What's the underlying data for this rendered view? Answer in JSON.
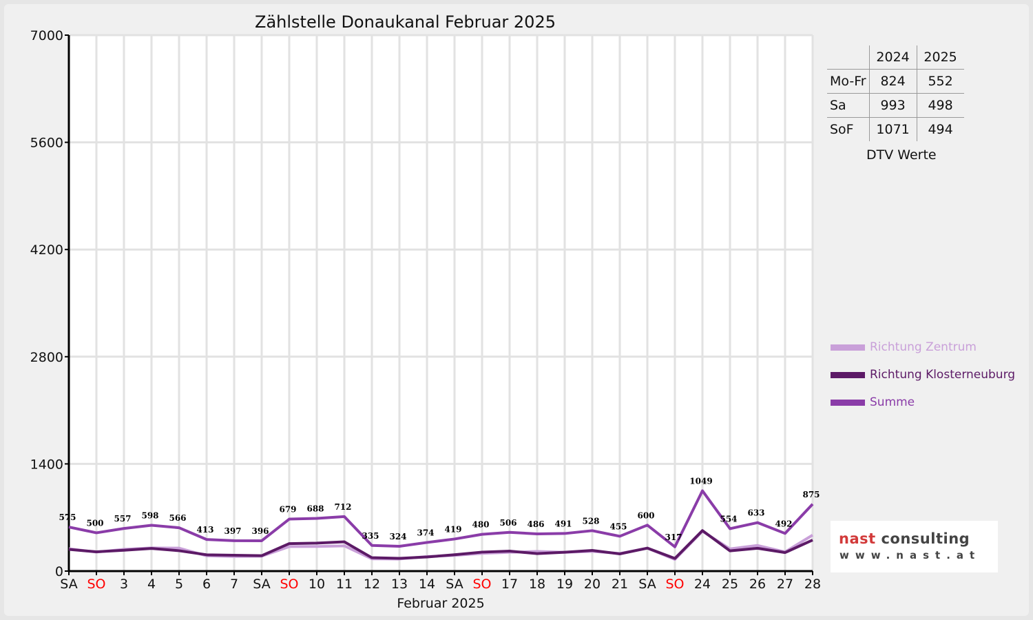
{
  "chart_data": {
    "type": "line",
    "title": "Zählstelle Donaukanal Februar 2025",
    "xlabel": "Februar 2025",
    "ylabel": "",
    "ylim": [
      0,
      7000
    ],
    "yticks": [
      0,
      1400,
      2800,
      4200,
      5600,
      7000
    ],
    "grid": true,
    "categories": [
      "SA",
      "SO",
      "3",
      "4",
      "5",
      "6",
      "7",
      "SA",
      "SO",
      "10",
      "11",
      "12",
      "13",
      "14",
      "SA",
      "SO",
      "17",
      "18",
      "19",
      "20",
      "21",
      "SA",
      "SO",
      "24",
      "25",
      "26",
      "27",
      "28"
    ],
    "sunday_color": "#ff0000",
    "legend_position": "right",
    "series": [
      {
        "name": "Richtung Zentrum",
        "color": "#c9a0d9",
        "values": [
          292,
          248,
          285,
          302,
          300,
          200,
          190,
          195,
          320,
          322,
          330,
          160,
          158,
          190,
          205,
          232,
          245,
          258,
          245,
          258,
          230,
          300,
          152,
          520,
          290,
          335,
          250,
          470
        ]
      },
      {
        "name": "Richtung Klosterneuburg",
        "color": "#5c1a66",
        "values": [
          283,
          252,
          272,
          296,
          266,
          213,
          207,
          201,
          359,
          366,
          382,
          175,
          166,
          184,
          214,
          248,
          261,
          228,
          246,
          270,
          225,
          300,
          165,
          529,
          264,
          298,
          242,
          405
        ]
      },
      {
        "name": "Summe",
        "color": "#8a3ca8",
        "values": [
          575,
          500,
          557,
          598,
          566,
          413,
          397,
          396,
          679,
          688,
          712,
          335,
          324,
          374,
          419,
          480,
          506,
          486,
          491,
          528,
          455,
          600,
          317,
          1049,
          554,
          633,
          492,
          875
        ],
        "show_labels": true
      }
    ]
  },
  "dtv": {
    "headers": [
      "",
      "2024",
      "2025"
    ],
    "rows": [
      [
        "Mo-Fr",
        "824",
        "552"
      ],
      [
        "Sa",
        "993",
        "498"
      ],
      [
        "SoF",
        "1071",
        "494"
      ]
    ],
    "caption": "DTV Werte"
  },
  "logo": {
    "line1a": "nast",
    "line1b": "consulting",
    "line2": "www.nast.at"
  }
}
